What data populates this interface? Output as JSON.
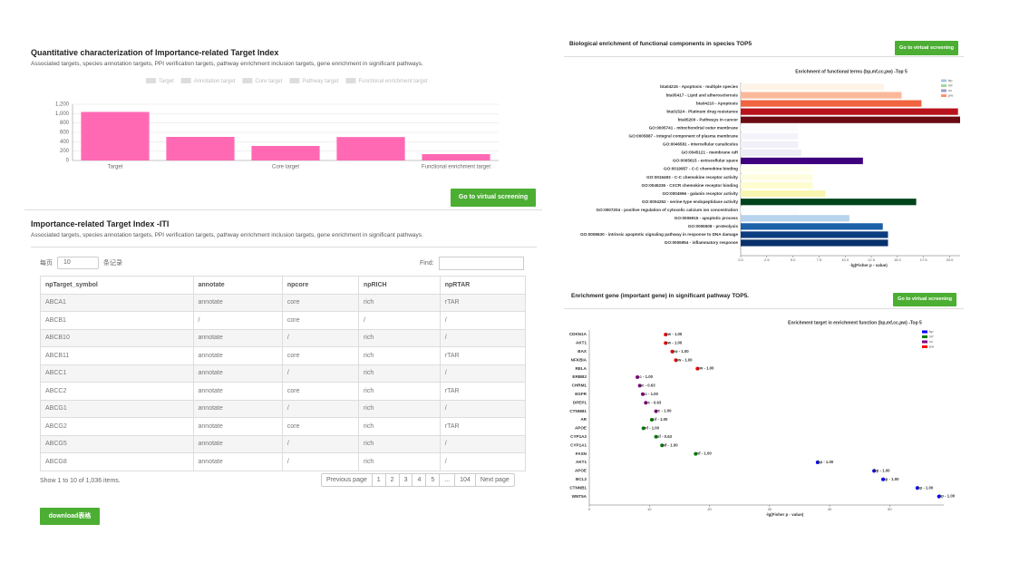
{
  "left": {
    "title": "Quantitative characterization of Importance-related Target Index",
    "subtitle": "Associated targets, species annotation targets, PPI verification targets, pathway enrichment inclusion targets, gene enrichment in significant pathways.",
    "chart": {
      "type": "bar",
      "legend": [
        "Target",
        "Annotation target",
        "Core target",
        "Pathway target",
        "Functional enrichment target"
      ],
      "categories": [
        "Target",
        null,
        "Core target",
        null,
        "Functional enrichment target"
      ],
      "values": [
        1036,
        503,
        310,
        500,
        135
      ],
      "color": "#ff69b4",
      "ylim": [
        0,
        1200
      ],
      "yticks": [
        0,
        200,
        400,
        600,
        800,
        {
          "value": 1000,
          "label": "1,000"
        },
        {
          "value": 1200,
          "label": "1,200"
        }
      ],
      "grid": true
    },
    "button": "Go to virtual screening"
  },
  "table_section": {
    "title": "Importance-related Target Index -ITI",
    "subtitle": "Associated targets, species annotation targets, PPI verification targets, pathway enrichment inclusion targets, gene enrichment in significant pathways.",
    "per_page_label": "每页",
    "per_page": "10",
    "records_label": "条记录",
    "find_label": "Find:",
    "table": {
      "headers": [
        "npTarget_symbol",
        "annotate",
        "npcore",
        "npRICH",
        "npRTAR"
      ],
      "rows": [
        [
          "ABCA1",
          "annotate",
          "core",
          "rich",
          "rTAR"
        ],
        [
          "ABCB1",
          "/",
          "core",
          "/",
          "/"
        ],
        [
          "ABCB10",
          "annotate",
          "/",
          "rich",
          "/"
        ],
        [
          "ABCB11",
          "annotate",
          "core",
          "rich",
          "rTAR"
        ],
        [
          "ABCC1",
          "annotate",
          "/",
          "rich",
          "/"
        ],
        [
          "ABCC2",
          "annotate",
          "core",
          "rich",
          "rTAR"
        ],
        [
          "ABCG1",
          "annotate",
          "/",
          "rich",
          "/"
        ],
        [
          "ABCG2",
          "annotate",
          "core",
          "rich",
          "rTAR"
        ],
        [
          "ABCG5",
          "annotate",
          "/",
          "rich",
          "/"
        ],
        [
          "ABCG8",
          "annotate",
          "/",
          "rich",
          "/"
        ]
      ]
    },
    "info": "Show 1 to 10 of 1,036 items.",
    "pagination": [
      "Previous page",
      "1",
      "2",
      "3",
      "4",
      "5",
      "...",
      "104",
      "Next page"
    ],
    "download": "download表格"
  },
  "right_top": {
    "title": "Biological enrichment of functional components in species TOP5",
    "button": "Go to virtual screening",
    "chart": {
      "type": "hbar",
      "title": "Enrichment of functional terms  (bp,mf,cc,pw)  -Top 5",
      "x_label": "-lg(Fisher p - value)",
      "categories": [
        "bta04215 - Apoptosis - multiple species",
        "bta05417 - Lipid and atherosclerosis",
        "bta04210 - Apoptosis",
        "bta01524 - Platinum drug resistance",
        "bta05200 - Pathways in cancer",
        "GO:0005741 - mitochondrial outer membrane",
        "GO:0005887 - integral component of plasma membrane",
        "GO:0046581 - intercellular canaliculus",
        "GO:0045121 - membrane raft",
        "GO:0005615 - extracellular space",
        "GO:0019957 - C-C chemokine binding",
        "GO:0016493 - C-C chemokine receptor activity",
        "GO:0045236 - CXCR chemokine receptor binding",
        "GO:0004966 - galanin receptor activity",
        "GO:0004252 - serine-type endopeptidase activity",
        "GO:0007204 - positive regulation of cytosolic calcium ion concentration",
        "GO:0006915 - apoptotic process",
        "GO:0006508 - proteolysis",
        "GO:0008630 - intrinsic apoptotic signaling pathway in response to DNA damage",
        "GO:0006954 - inflammatory response"
      ],
      "values": [
        13.7,
        15.4,
        17.3,
        20.8,
        21.0,
        5.5,
        5.5,
        5.5,
        5.8,
        11.7,
        6.9,
        6.9,
        6.9,
        8.1,
        16.8,
        5.5,
        10.4,
        13.6,
        14.1,
        14.1
      ],
      "colors": [
        "#fdf3e6",
        "#fbb99b",
        "#f0643f",
        "#b8131c",
        "#6b0a13",
        "#fbfafd",
        "#f4f3f9",
        "#f1f0f8",
        "#edecf6",
        "#3f007d",
        "#fffff0",
        "#fffde0",
        "#fffcd0",
        "#f8f5b0",
        "#00441b",
        "#fbfdff",
        "#b8d3ee",
        "#1b60a8",
        "#0b3d7f",
        "#08306b"
      ],
      "xlim": [
        0,
        21
      ],
      "xticks": [
        {
          "value": 0,
          "label": "0.0"
        },
        2.5,
        {
          "value": 5,
          "label": "5.0"
        },
        7.5,
        {
          "value": 10,
          "label": "10.0"
        },
        12.5,
        {
          "value": 15,
          "label": "15.0"
        },
        17.5,
        {
          "value": 20,
          "label": "20.0"
        }
      ],
      "legend": [
        {
          "name": "bp",
          "color": "#9ecae1"
        },
        {
          "name": "mf",
          "color": "#a1d99b"
        },
        {
          "name": "cc",
          "color": "#9e9ac8"
        },
        {
          "name": "pw",
          "color": "#fc9272"
        }
      ]
    }
  },
  "right_bottom": {
    "title": "Enrichment gene (important gene) in significant pathway TOP5.",
    "button": "Go to virtual screening",
    "chart": {
      "type": "dot",
      "title": "Enrichment target in enrichment function  (bp,mf,cc,pw)  -Top 5",
      "x_label": "-lg(Fisher p - value)",
      "categories": [
        "CDKN1A",
        "AKT1",
        "BAX",
        "NFKBIA",
        "RELA",
        "ERBB2",
        "CHRM1",
        "EGFR",
        "DPEP1",
        "CTNNB1",
        "AR",
        "APOE",
        "CYP1A2",
        "CYP1A1",
        "FASN",
        "AKT1",
        "APOE",
        "BCL2",
        "CTNNB1",
        "WNT5A"
      ],
      "values": [
        12.7,
        12.7,
        13.8,
        14.4,
        18,
        8,
        8.4,
        8.9,
        9.4,
        11.1,
        10.4,
        9,
        11.1,
        12.1,
        17.7,
        38,
        47.4,
        48.9,
        54.6,
        58.2
      ],
      "point_labels": [
        "pw - 1.00",
        "pw - 1.00",
        "pw - 1.00",
        "pw - 1.00",
        "pw - 1.00",
        "cc - 1.00",
        "cc - 0.63",
        "cc - 1.00",
        "cc - 0.63",
        "cc - 1.00",
        "mf - 1.00",
        "mf - 1.00",
        "mf - 0.63",
        "mf - 1.00",
        "mf - 1.00",
        "bp - 1.00",
        "bp - 1.00",
        "bp - 1.00",
        "bp - 1.00",
        "bp - 1.00"
      ],
      "colors": [
        "#ff0000",
        "#ff0000",
        "#ff0000",
        "#ff0000",
        "#ff0000",
        "#800080",
        "#800080",
        "#800080",
        "#800080",
        "#800080",
        "#008000",
        "#008000",
        "#008000",
        "#008000",
        "#008000",
        "#0000ff",
        "#0000ff",
        "#0000ff",
        "#0000ff",
        "#0000ff"
      ],
      "xlim": [
        0,
        59
      ],
      "xticks": [
        0,
        10,
        20,
        30,
        40,
        50
      ],
      "legend": [
        {
          "name": "bp",
          "color": "#0000ff"
        },
        {
          "name": "mf",
          "color": "#008000"
        },
        {
          "name": "cc",
          "color": "#800080"
        },
        {
          "name": "pw",
          "color": "#ff0000"
        }
      ]
    }
  }
}
